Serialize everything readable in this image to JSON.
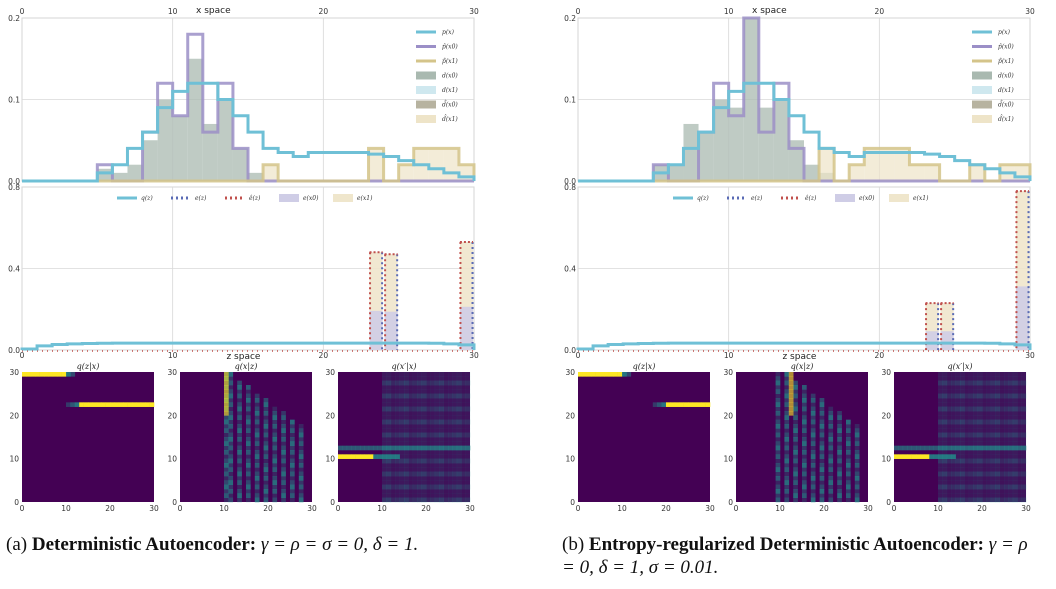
{
  "panels": [
    {
      "id": "a",
      "caption_tag": "(a)",
      "caption_bold": "Deterministic Autoencoder:",
      "caption_math": "γ = ρ = σ = 0, δ = 1.",
      "chart_data": [
        {
          "type": "bar",
          "title": "x space",
          "xlim": [
            0,
            30
          ],
          "ylim": [
            0,
            0.2
          ],
          "xticks": [
            "0",
            "10",
            "20",
            "30"
          ],
          "yticks": [
            "0.0",
            "0.1",
            "0.2"
          ],
          "legend_position": "top-right",
          "legend": [
            "p(x)",
            "p̂(x0)",
            "p̂(x1)",
            "d(x0)",
            "d(x1)",
            "d̂(x0)",
            "d̂(x1)"
          ],
          "series": [
            {
              "name": "p(x)",
              "values": [
                0,
                0,
                0,
                0,
                0,
                0.01,
                0.02,
                0.04,
                0.06,
                0.09,
                0.11,
                0.12,
                0.12,
                0.1,
                0.08,
                0.06,
                0.04,
                0.035,
                0.03,
                0.035,
                0.035,
                0.035,
                0.035,
                0.033,
                0.03,
                0.025,
                0.02,
                0.015,
                0.01,
                0.005
              ]
            },
            {
              "name": "p̂(x0)",
              "values": [
                0,
                0,
                0,
                0,
                0,
                0.02,
                0,
                0,
                0.06,
                0.12,
                0.08,
                0.18,
                0.06,
                0.12,
                0.04,
                0,
                0,
                0,
                0,
                0,
                0,
                0,
                0,
                0,
                0,
                0,
                0,
                0,
                0,
                0
              ]
            },
            {
              "name": "p̂(x1)",
              "values": [
                0,
                0,
                0,
                0,
                0,
                0,
                0,
                0,
                0,
                0,
                0,
                0,
                0,
                0,
                0,
                0,
                0.02,
                0,
                0,
                0,
                0,
                0,
                0,
                0.04,
                0,
                0.02,
                0.04,
                0.04,
                0.04,
                0.02
              ]
            },
            {
              "name": "d(x0)",
              "values": [
                0,
                0,
                0,
                0,
                0,
                0.015,
                0.01,
                0.02,
                0.05,
                0.1,
                0.08,
                0.15,
                0.07,
                0.1,
                0.04,
                0.01,
                0,
                0,
                0,
                0,
                0,
                0,
                0,
                0,
                0,
                0,
                0,
                0,
                0,
                0
              ]
            }
          ]
        },
        {
          "type": "bar",
          "title": "z space",
          "xlim": [
            0,
            30
          ],
          "ylim": [
            0,
            0.8
          ],
          "xticks": [
            "0",
            "10",
            "20",
            "30"
          ],
          "yticks": [
            "0.0",
            "0.4",
            "0.8"
          ],
          "legend_position": "top-center",
          "legend": [
            "q(z)",
            "e(z)",
            "ê(z)",
            "e(x0)",
            "e(x1)"
          ],
          "series": [
            {
              "name": "q(z)",
              "values": [
                0.005,
                0.02,
                0.027,
                0.03,
                0.032,
                0.033,
                0.034,
                0.034,
                0.034,
                0.034,
                0.034,
                0.034,
                0.034,
                0.034,
                0.034,
                0.034,
                0.034,
                0.034,
                0.034,
                0.034,
                0.034,
                0.034,
                0.034,
                0.034,
                0.034,
                0.034,
                0.034,
                0.033,
                0.03,
                0.025
              ]
            },
            {
              "name": "e(z)",
              "values": [
                0,
                0,
                0,
                0,
                0,
                0,
                0,
                0,
                0,
                0,
                0,
                0,
                0,
                0,
                0,
                0,
                0,
                0,
                0,
                0,
                0,
                0,
                0,
                0.48,
                0.47,
                0,
                0,
                0,
                0,
                0.53
              ]
            }
          ]
        }
      ],
      "heatmaps": [
        {
          "title": "q(z|x)",
          "xticks": [
            "0",
            "10",
            "20",
            "30"
          ],
          "yticks": [
            "0",
            "10",
            "20",
            "30"
          ]
        },
        {
          "title": "q(x|z)",
          "xticks": [
            "0",
            "10",
            "20",
            "30"
          ],
          "yticks": [
            "0",
            "10",
            "20",
            "30"
          ]
        },
        {
          "title": "q(x′|x)",
          "xticks": [
            "0",
            "10",
            "20",
            "30"
          ],
          "yticks": [
            "0",
            "10",
            "20",
            "30"
          ]
        }
      ]
    },
    {
      "id": "b",
      "caption_tag": "(b)",
      "caption_bold": "Entropy-regularized Deterministic Autoencoder:",
      "caption_math": "γ = ρ = 0, δ = 1, σ = 0.01.",
      "chart_data": [
        {
          "type": "bar",
          "title": "x space",
          "xlim": [
            0,
            30
          ],
          "ylim": [
            0,
            0.2
          ],
          "xticks": [
            "0",
            "10",
            "20",
            "30"
          ],
          "yticks": [
            "0.0",
            "0.1",
            "0.2"
          ],
          "legend_position": "top-right",
          "legend": [
            "p(x)",
            "p̂(x0)",
            "p̂(x1)",
            "d(x0)",
            "d(x1)",
            "d̂(x0)",
            "d̂(x1)"
          ],
          "series": [
            {
              "name": "p(x)",
              "values": [
                0,
                0,
                0,
                0,
                0,
                0.01,
                0.02,
                0.04,
                0.06,
                0.09,
                0.11,
                0.12,
                0.12,
                0.1,
                0.08,
                0.06,
                0.04,
                0.035,
                0.03,
                0.035,
                0.035,
                0.035,
                0.035,
                0.033,
                0.03,
                0.025,
                0.02,
                0.015,
                0.01,
                0.005
              ]
            },
            {
              "name": "p̂(x0)",
              "values": [
                0,
                0,
                0,
                0,
                0,
                0.02,
                0,
                0,
                0.06,
                0.12,
                0.08,
                0.2,
                0.06,
                0.12,
                0.04,
                0,
                0,
                0,
                0,
                0,
                0,
                0,
                0,
                0,
                0,
                0,
                0,
                0,
                0,
                0
              ]
            },
            {
              "name": "p̂(x1)",
              "values": [
                0,
                0,
                0,
                0,
                0,
                0,
                0,
                0,
                0,
                0,
                0,
                0,
                0,
                0,
                0,
                0,
                0.04,
                0,
                0.02,
                0.04,
                0.04,
                0.04,
                0.02,
                0.02,
                0,
                0,
                0.02,
                0,
                0.02,
                0.02
              ]
            },
            {
              "name": "d(x0)",
              "values": [
                0,
                0,
                0,
                0,
                0,
                0.02,
                0.02,
                0.07,
                0.06,
                0.1,
                0.09,
                0.2,
                0.09,
                0.1,
                0.05,
                0.02,
                0.01,
                0,
                0,
                0,
                0,
                0,
                0,
                0,
                0,
                0,
                0,
                0,
                0,
                0
              ]
            }
          ]
        },
        {
          "type": "bar",
          "title": "z space",
          "xlim": [
            0,
            30
          ],
          "ylim": [
            0,
            0.8
          ],
          "xticks": [
            "0",
            "10",
            "20",
            "30"
          ],
          "yticks": [
            "0.0",
            "0.4",
            "0.8"
          ],
          "legend_position": "top-center",
          "legend": [
            "q(z)",
            "e(z)",
            "ê(z)",
            "e(x0)",
            "e(x1)"
          ],
          "series": [
            {
              "name": "q(z)",
              "values": [
                0.005,
                0.02,
                0.027,
                0.03,
                0.032,
                0.033,
                0.034,
                0.034,
                0.034,
                0.034,
                0.034,
                0.034,
                0.034,
                0.034,
                0.034,
                0.034,
                0.034,
                0.034,
                0.034,
                0.034,
                0.034,
                0.034,
                0.034,
                0.034,
                0.034,
                0.034,
                0.034,
                0.033,
                0.03,
                0.025
              ]
            },
            {
              "name": "e(z)",
              "values": [
                0,
                0,
                0,
                0,
                0,
                0,
                0,
                0,
                0,
                0,
                0,
                0,
                0,
                0,
                0,
                0,
                0,
                0,
                0,
                0,
                0,
                0,
                0,
                0.23,
                0.23,
                0,
                0,
                0,
                0,
                0.78
              ]
            }
          ]
        }
      ],
      "heatmaps": [
        {
          "title": "q(z|x)",
          "xticks": [
            "0",
            "10",
            "20",
            "30"
          ],
          "yticks": [
            "0",
            "10",
            "20",
            "30"
          ]
        },
        {
          "title": "q(x|z)",
          "xticks": [
            "0",
            "10",
            "20",
            "30"
          ],
          "yticks": [
            "0",
            "10",
            "20",
            "30"
          ]
        },
        {
          "title": "q(x′|x)",
          "xticks": [
            "0",
            "10",
            "20",
            "30"
          ],
          "yticks": [
            "0",
            "10",
            "20",
            "30"
          ]
        }
      ]
    }
  ],
  "colors": {
    "p": "#6fc0d6",
    "phat0": "#9b8fc7",
    "phat1": "#d4c48a",
    "d0": "#a9b9b0",
    "d1": "#cfe8ef",
    "dhat0": "#b7b3a0",
    "dhat1": "#eee4c8",
    "qz": "#6fc0d6",
    "ez": "#5a6bb5",
    "ehatz": "#c0504d",
    "ex0": "#cfcde6",
    "ex1": "#efe6cc",
    "heat_bg": "#440154",
    "heat_mid": "#21918c",
    "heat_hi": "#fde725"
  }
}
